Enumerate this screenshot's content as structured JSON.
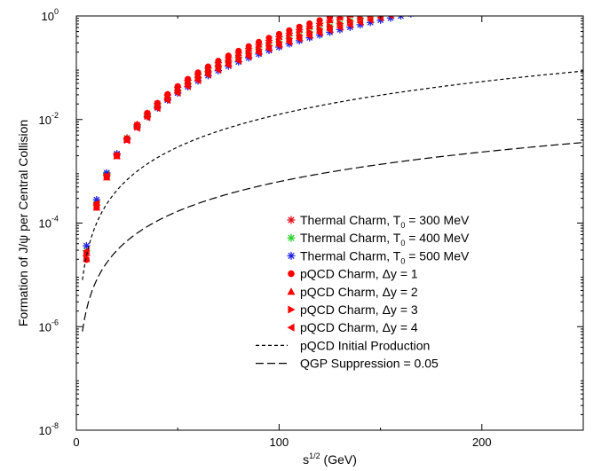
{
  "chart_data": {
    "type": "scatter",
    "xlabel": {
      "base": "s",
      "sup": "1/2",
      "rest": " (GeV)"
    },
    "ylabel": "Formation of J/ψ per Central Collision",
    "xlim": [
      0,
      250
    ],
    "ylim": [
      1e-08,
      1
    ],
    "yscale": "log",
    "grid": false,
    "legend_position": "center-right",
    "xticks": [
      {
        "value": 0,
        "label": "0"
      },
      {
        "value": 100,
        "label": "100"
      },
      {
        "value": 200,
        "label": "200"
      }
    ],
    "yticks": [
      {
        "value": 1e-08,
        "base": "10",
        "exp": "-8"
      },
      {
        "value": 1e-06,
        "base": "10",
        "exp": "-6"
      },
      {
        "value": 0.0001,
        "base": "10",
        "exp": "-4"
      },
      {
        "value": 0.01,
        "base": "10",
        "exp": "-2"
      },
      {
        "value": 1,
        "base": "10",
        "exp": "0"
      }
    ],
    "x": [
      5,
      10,
      15,
      20,
      25,
      30,
      35,
      40,
      45,
      50,
      55,
      60,
      65,
      70,
      75,
      80,
      85,
      90,
      95,
      100,
      105,
      110,
      115,
      120,
      125,
      130,
      135,
      140,
      145,
      150,
      155,
      160,
      165,
      170,
      175,
      180,
      185,
      190,
      195,
      200,
      205,
      210,
      215,
      220,
      225,
      230,
      235,
      240,
      245,
      250
    ],
    "series": [
      {
        "name": "Thermal Charm, T0 = 300 MeV",
        "label_main": "Thermal Charm, T",
        "label_sub": "0",
        "label_rest": " = 300 MeV",
        "marker": "asterisk",
        "color": "#e0141e",
        "xend": 250,
        "ya": -3.65,
        "yb": 3.25
      },
      {
        "name": "Thermal Charm, T0 = 400 MeV",
        "label_main": "Thermal Charm, T",
        "label_sub": "0",
        "label_rest": " = 400 MeV",
        "marker": "asterisk",
        "color": "#2bd42b",
        "xend": 250,
        "ya": -3.6,
        "yb": 3.1
      },
      {
        "name": "Thermal Charm, T0 = 500 MeV",
        "label_main": "Thermal Charm, T",
        "label_sub": "0",
        "label_rest": " = 500 MeV",
        "marker": "asterisk",
        "color": "#2323e0",
        "xend": 250,
        "ya": -3.55,
        "yb": 2.95
      },
      {
        "name": "pQCD Charm, Δy = 1",
        "label_main": "pQCD Charm, Δy = 1",
        "marker": "circle",
        "color": "#ff0000",
        "xend": 250,
        "ya": -3.7,
        "yb": 3.35
      },
      {
        "name": "pQCD Charm, Δy = 2",
        "label_main": "pQCD Charm, Δy = 2",
        "marker": "triangle-up",
        "color": "#ff0000",
        "xend": 250,
        "ya": -3.7,
        "yb": 3.3
      },
      {
        "name": "pQCD Charm, Δy = 3",
        "label_main": "pQCD Charm, Δy = 3",
        "marker": "triangle-right",
        "color": "#ff0000",
        "xend": 250,
        "ya": -3.65,
        "yb": 3.15
      },
      {
        "name": "pQCD Charm, Δy = 4",
        "label_main": "pQCD Charm, Δy = 4",
        "marker": "triangle-left",
        "color": "#ff0000",
        "xend": 250,
        "ya": -3.62,
        "yb": 3.05
      },
      {
        "name": "pQCD Initial Production",
        "label_main": "pQCD Initial Production",
        "marker": "line-dash-short",
        "color": "#000000",
        "xend": 250,
        "ya": -4.0,
        "yb": 2.1
      },
      {
        "name": "QGP  Suppression = 0.05",
        "label_main": "QGP  Suppression = 0.05",
        "marker": "line-dash-long",
        "color": "#000000",
        "xend": 250,
        "ya": -5.1,
        "yb": 1.9
      }
    ]
  }
}
